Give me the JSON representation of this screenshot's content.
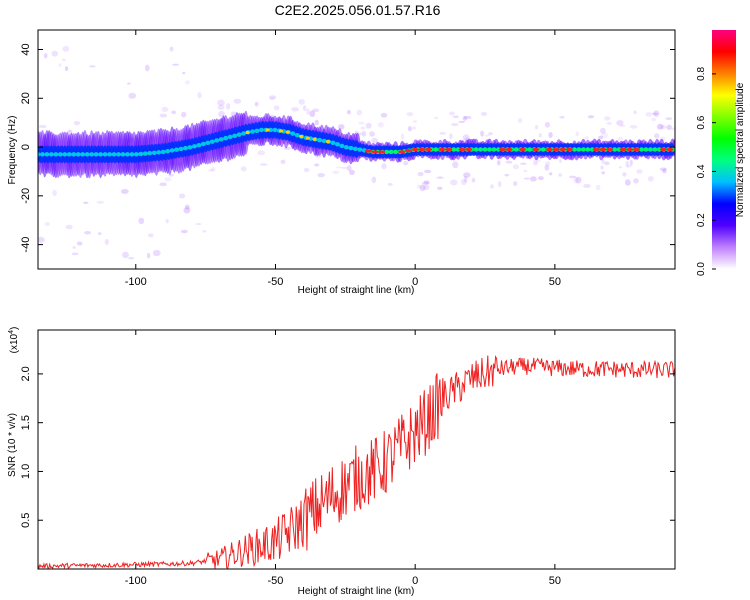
{
  "title": "C2E2.2025.056.01.57.R16",
  "colorbar": {
    "label": "Normalized spectral amplitude",
    "ticks": [
      "0.0",
      "0.2",
      "0.4",
      "0.6",
      "0.8"
    ],
    "colors": [
      "#ffffff",
      "#c080ff",
      "#5000ff",
      "#0000ff",
      "#00c0ff",
      "#00ff80",
      "#00ff00",
      "#80ff00",
      "#ffff00",
      "#ff8000",
      "#ff0000",
      "#ff0080"
    ]
  },
  "chart_data": [
    {
      "type": "heatmap",
      "xlabel": "Height of straight line (km)",
      "ylabel": "Frequency (Hz)",
      "xlim": [
        -135,
        93
      ],
      "ylim": [
        -50,
        48
      ],
      "xticks": [
        "-100",
        "-50",
        "0",
        "50"
      ],
      "yticks": [
        "40",
        "20",
        "0",
        "-20",
        "-40"
      ],
      "ridge": {
        "x": [
          -135,
          -120,
          -100,
          -90,
          -80,
          -70,
          -60,
          -55,
          -50,
          -45,
          -40,
          -35,
          -30,
          -25,
          -20,
          -15,
          -10,
          -5,
          0,
          10,
          20,
          30,
          40,
          50,
          60,
          70,
          80,
          93
        ],
        "y": [
          -3,
          -3,
          -3,
          -2,
          0,
          3,
          6,
          7,
          7,
          6,
          4,
          3,
          2,
          0,
          -1,
          -2,
          -2,
          -2,
          -1,
          -1,
          -1,
          -1,
          -1,
          -1,
          -1,
          -1,
          -1,
          -1
        ]
      }
    },
    {
      "type": "line",
      "xlabel": "Height of straight line (km)",
      "ylabel": "SNR (10 * v/v)",
      "y_multiplier": "(x10",
      "y_multiplier_exp": "4",
      "xlim": [
        -135,
        93
      ],
      "ylim": [
        0,
        2.45
      ],
      "xticks": [
        "-100",
        "-50",
        "0",
        "50"
      ],
      "yticks": [
        "2.0",
        "1.5",
        "1.0",
        "0.5"
      ],
      "color": "#ee2222",
      "x": [
        -135,
        -110,
        -90,
        -80,
        -70,
        -60,
        -50,
        -45,
        -40,
        -35,
        -30,
        -25,
        -20,
        -15,
        -10,
        -5,
        0,
        5,
        10,
        15,
        20,
        25,
        30,
        35,
        40,
        45,
        50,
        60,
        70,
        80,
        93
      ],
      "y": [
        0.03,
        0.04,
        0.05,
        0.06,
        0.1,
        0.2,
        0.28,
        0.38,
        0.5,
        0.62,
        0.75,
        0.85,
        0.95,
        1.0,
        1.1,
        1.25,
        1.4,
        1.55,
        1.75,
        1.85,
        1.95,
        2.0,
        2.05,
        2.07,
        2.08,
        2.07,
        2.06,
        2.05,
        2.05,
        2.04,
        2.04
      ]
    }
  ]
}
